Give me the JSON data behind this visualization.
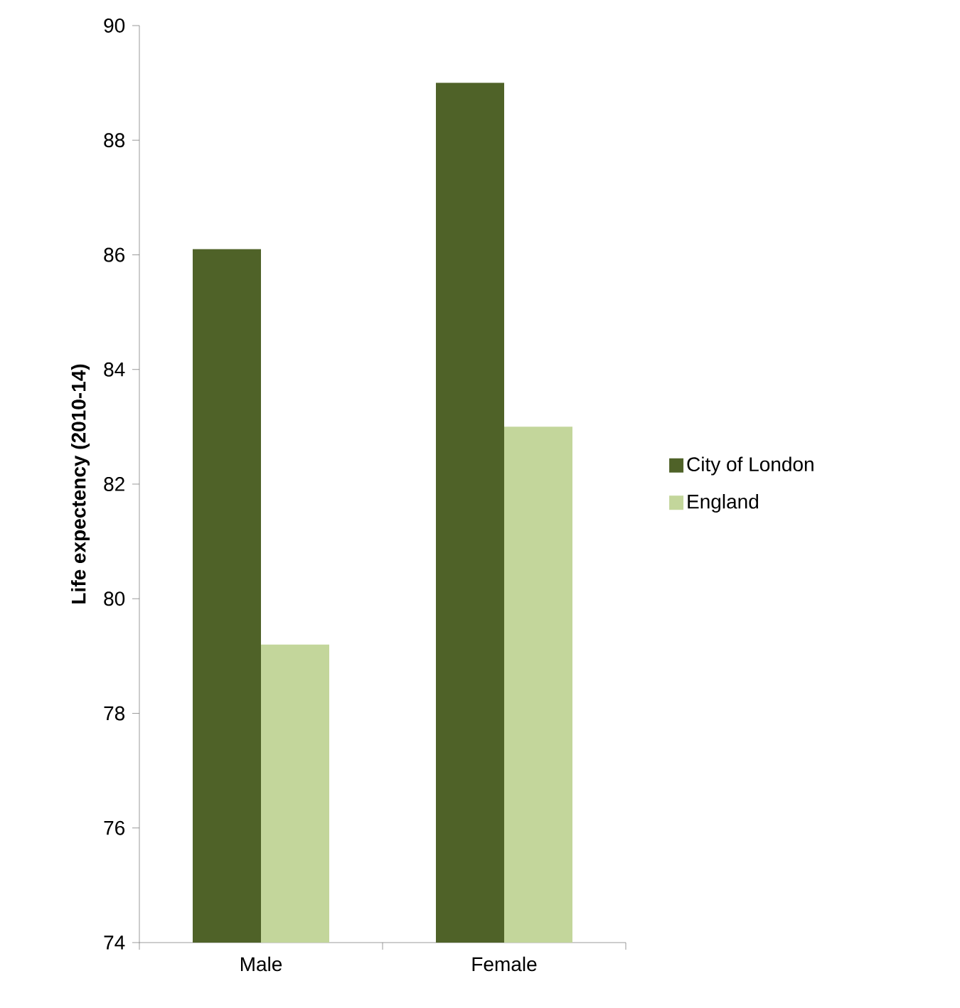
{
  "chart_data": {
    "type": "bar",
    "ylabel": "Life expectency (2010-14)",
    "categories": [
      "Male",
      "Female"
    ],
    "series": [
      {
        "name": "City of London",
        "color": "#4f6228",
        "values": [
          86.1,
          89.0
        ]
      },
      {
        "name": "England",
        "color": "#c3d69b",
        "values": [
          79.2,
          83.0
        ]
      }
    ],
    "ylim": [
      74,
      90
    ],
    "yticks": [
      74,
      76,
      78,
      80,
      82,
      84,
      86,
      88,
      90
    ],
    "legend": "right",
    "grid": false
  }
}
